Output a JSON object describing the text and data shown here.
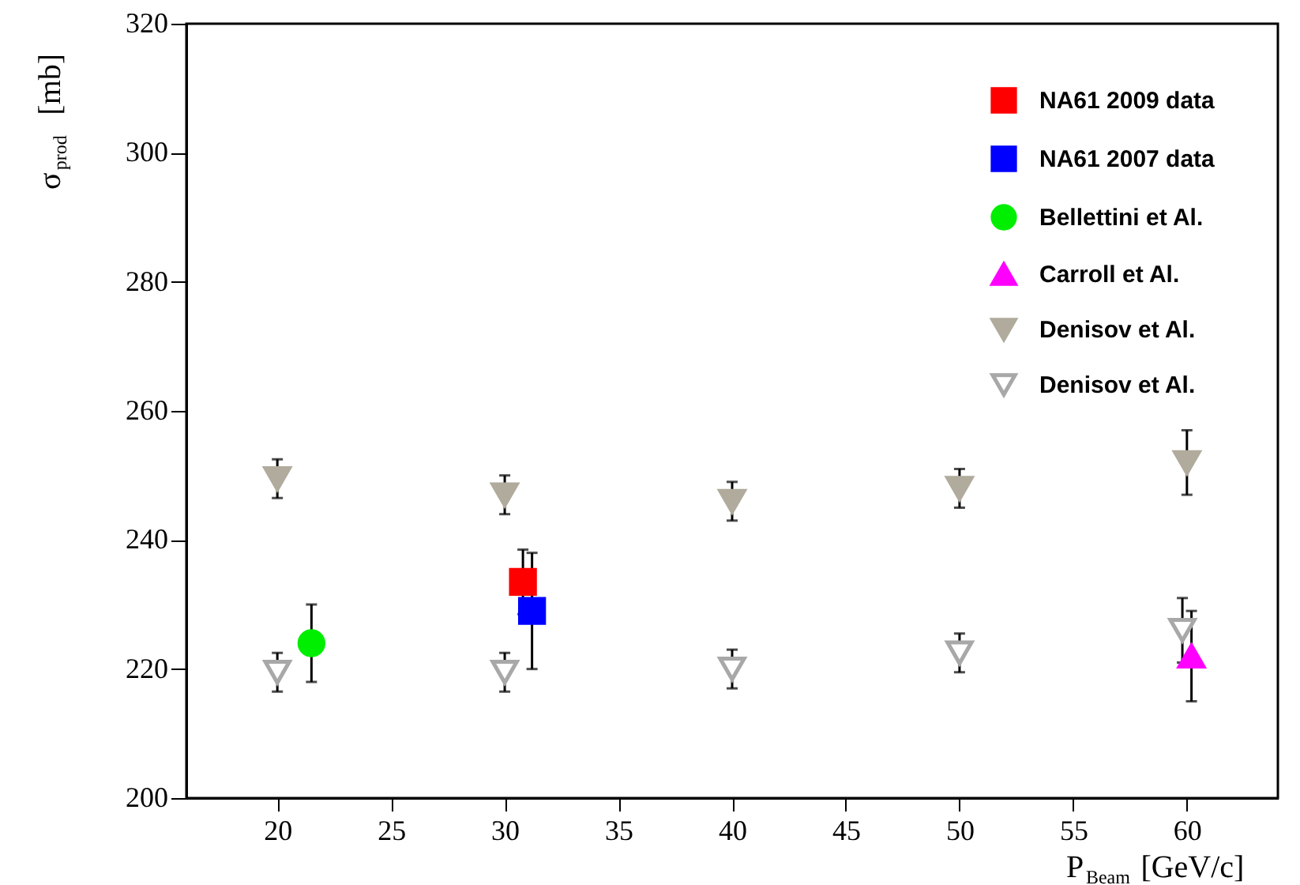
{
  "chart_data": {
    "type": "scatter",
    "xlabel": "P$_{Beam}$ [GeV/c]",
    "ylabel": "σ$_{prod}$ [mb]",
    "xlim": [
      16,
      64
    ],
    "xticks": [
      20,
      25,
      30,
      35,
      40,
      45,
      50,
      55,
      60
    ],
    "ylim": [
      200,
      320
    ],
    "yticks": [
      200,
      220,
      240,
      260,
      280,
      300,
      320
    ],
    "grid": false,
    "legend": "top right",
    "series": [
      {
        "name": "NA61 2009 data",
        "color": "#ff0000",
        "marker": "square",
        "x": [
          30.8
        ],
        "values": [
          233.5
        ],
        "errors": [
          5
        ]
      },
      {
        "name": "NA61 2007 data",
        "color": "#0000ff",
        "marker": "square",
        "x": [
          31.2
        ],
        "values": [
          229
        ],
        "errors": [
          9
        ]
      },
      {
        "name": "Bellettini et Al.",
        "color": "#00ee00",
        "marker": "circle",
        "x": [
          21.5
        ],
        "values": [
          224
        ],
        "errors": [
          6
        ]
      },
      {
        "name": "Carroll et Al.",
        "color": "#ff00ff",
        "marker": "triangle",
        "x": [
          60.2
        ],
        "values": [
          222
        ],
        "errors": [
          7
        ]
      },
      {
        "name": "Denisov et Al.",
        "color": "#b0ab9c",
        "marker": "triangle-down",
        "x": [
          20,
          30,
          40,
          50,
          60
        ],
        "values": [
          249.5,
          247,
          246,
          248,
          252
        ],
        "errors": [
          3,
          3,
          3,
          3,
          5
        ]
      },
      {
        "name": "Denisov et Al.",
        "color": "#a8a8a8",
        "marker": "triangle-down-open",
        "x": [
          20,
          30,
          40,
          50,
          59.8
        ],
        "values": [
          219.5,
          219.5,
          220,
          222.5,
          226
        ],
        "errors": [
          3,
          3,
          3,
          3,
          5
        ]
      }
    ]
  }
}
